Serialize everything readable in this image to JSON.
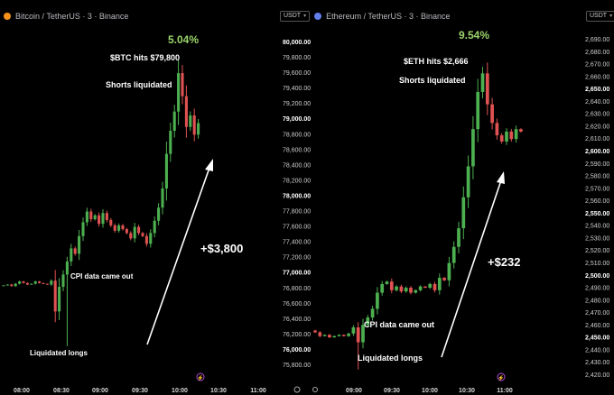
{
  "colors": {
    "up": "#4caf50",
    "down": "#e05252",
    "percent": "#9ad36a",
    "btc_icon": "#f7931a",
    "eth_icon": "#627eea"
  },
  "btc_panel": {
    "header": "Bitcoin / TetherUS · 3 · Binance"
  },
  "eth_panel": {
    "header": "Ethereum / TetherUS · 3 · Binance",
    "currency": "USDT"
  },
  "right_axis": {
    "currency": "USDT"
  },
  "chart_data": [
    {
      "type": "candlestick",
      "title": "Bitcoin / TetherUS · 3 · Binance",
      "x_ticks": [
        "08:00",
        "08:30",
        "09:00",
        "09:30",
        "10:00",
        "10:30",
        "11:00"
      ],
      "annotations": {
        "percent": "5.04%",
        "peak": "$BTC hits $79,800",
        "shorts": "Shorts liquidated",
        "gain": "+$3,800",
        "cpi": "CPI  data came out",
        "longs": "Liquidated longs"
      },
      "closes": [
        76840,
        76850,
        76830,
        76860,
        76890,
        76870,
        76850,
        76860,
        76890,
        76870,
        76860,
        76850,
        76900,
        76500,
        76820,
        76980,
        77150,
        77320,
        77250,
        77480,
        77660,
        77800,
        77700,
        77750,
        77640,
        77780,
        77690,
        77620,
        77550,
        77620,
        77570,
        77520,
        77450,
        77600,
        77520,
        77480,
        77380,
        77520,
        77680,
        77850,
        78100,
        78550,
        78850,
        79100,
        79600,
        79300,
        78900,
        79050,
        78800,
        78950
      ]
    },
    {
      "type": "candlestick",
      "title": "Ethereum / TetherUS · 3 · Binance",
      "x_ticks": [
        "09:00",
        "09:30",
        "10:00",
        "10:30",
        "11:00"
      ],
      "y_range": [
        2420,
        2690
      ],
      "annotations": {
        "percent": "9.54%",
        "peak": "$ETH hits $2,666",
        "shorts": "Shorts liquidated",
        "gain": "+$232",
        "cpi": "CPI data came out",
        "longs": "Liquidated longs"
      },
      "closes": [
        2456,
        2453,
        2454,
        2452,
        2453,
        2454,
        2453,
        2455,
        2460,
        2448,
        2462,
        2468,
        2475,
        2488,
        2495,
        2497,
        2490,
        2493,
        2489,
        2492,
        2488,
        2490,
        2493,
        2492,
        2495,
        2490,
        2500,
        2498,
        2512,
        2525,
        2540,
        2565,
        2590,
        2620,
        2650,
        2665,
        2640,
        2625,
        2615,
        2610,
        2618,
        2612,
        2620,
        2618
      ]
    }
  ],
  "btc_axis": {
    "labels": [
      "80,000.00",
      "79,800.00",
      "79,600.00",
      "79,400.00",
      "79,200.00",
      "79,000.00",
      "78,800.00",
      "78,600.00",
      "78,400.00",
      "78,200.00",
      "78,000.00",
      "77,800.00",
      "77,600.00",
      "77,400.00",
      "77,200.00",
      "77,000.00",
      "76,800.00",
      "76,600.00",
      "76,400.00",
      "76,200.00",
      "76,000.00",
      "75,800.00"
    ]
  },
  "eth_axis": {
    "labels": [
      "2,690.00",
      "2,680.00",
      "2,670.00",
      "2,660.00",
      "2,650.00",
      "2,640.00",
      "2,630.00",
      "2,620.00",
      "2,610.00",
      "2,600.00",
      "2,590.00",
      "2,580.00",
      "2,570.00",
      "2,560.00",
      "2,550.00",
      "2,540.00",
      "2,530.00",
      "2,520.00",
      "2,510.00",
      "2,500.00",
      "2,490.00",
      "2,480.00",
      "2,470.00",
      "2,460.00",
      "2,450.00",
      "2,440.00",
      "2,430.00",
      "2,420.00"
    ]
  }
}
